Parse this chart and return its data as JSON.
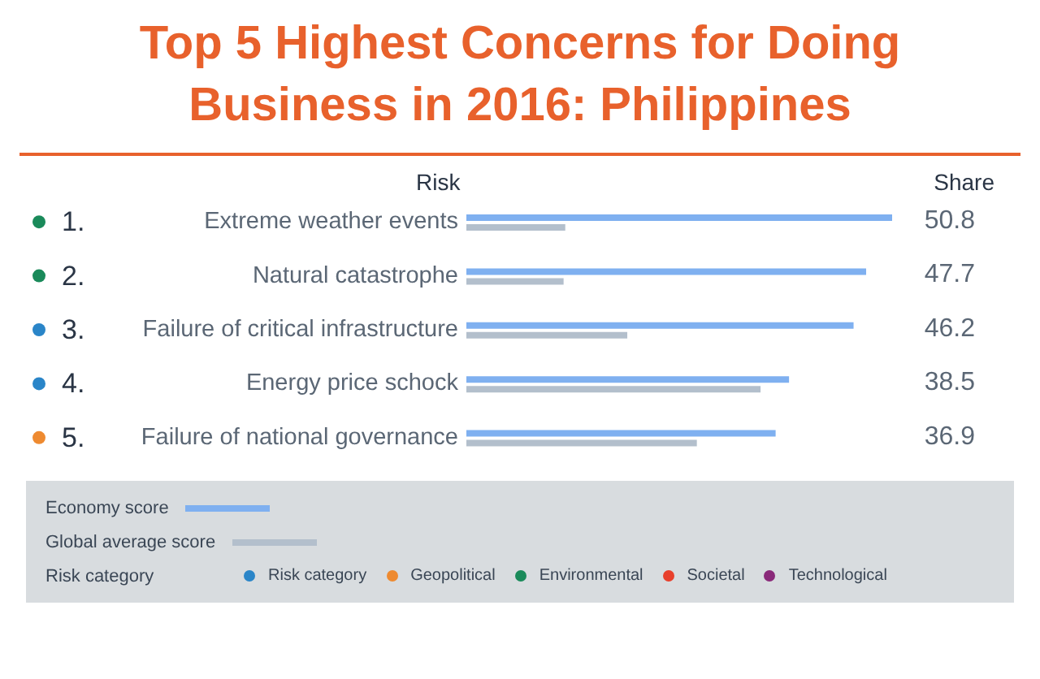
{
  "chart_data": {
    "type": "bar",
    "orientation": "horizontal",
    "title": "Top 5 Highest Concerns for Doing Business in 2016: Philippines",
    "categories": [
      "Extreme weather events",
      "Natural catastrophe",
      "Failure of critical infrastructure",
      "Energy price schock",
      "Failure of national governance"
    ],
    "series": [
      {
        "name": "Economy score",
        "color": "#7fb0f0",
        "values": [
          50.8,
          47.7,
          46.2,
          38.5,
          36.9
        ],
        "value_labels": [
          "50.8",
          "47.7",
          "46.2",
          "38.5",
          "36.9"
        ]
      },
      {
        "name": "Global average score",
        "color": "#b3bfcc",
        "values": [
          11.8,
          11.6,
          19.2,
          35.1,
          27.5
        ]
      }
    ],
    "tick_labels": "y",
    "legend": "bottom",
    "annotations": [
      "Risk",
      "Share",
      "1.",
      "2.",
      "3.",
      "4.",
      "5.",
      "Risk category",
      "Risk category",
      "Geopolitical",
      "Environmental",
      "Societal",
      "Technological"
    ]
  }
}
